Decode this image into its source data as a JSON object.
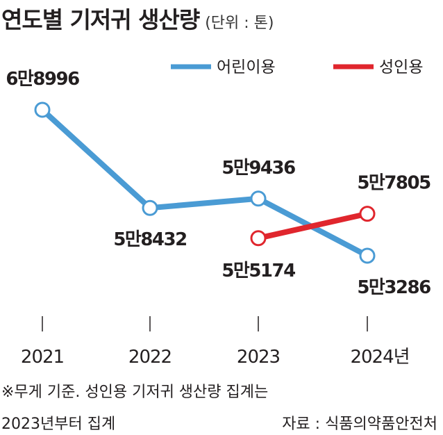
{
  "title": "연도별 기저귀 생산량",
  "unit_note": "(단위 : 톤)",
  "chart_data": {
    "type": "line",
    "categories": [
      "2021",
      "2022",
      "2023",
      "2024년"
    ],
    "series": [
      {
        "name": "어린이용",
        "color": "#4a9bd4",
        "values": [
          68996,
          58432,
          59436,
          53286
        ],
        "labels": [
          "6만8996",
          "5만8432",
          "5만9436",
          "5만3286"
        ]
      },
      {
        "name": "성인용",
        "color": "#e0262d",
        "values": [
          null,
          null,
          55174,
          57805
        ],
        "labels": [
          null,
          null,
          "5만5174",
          "5만7805"
        ]
      }
    ],
    "xlabel": "",
    "ylabel": "",
    "grid": false,
    "legend": "top-right"
  },
  "footnote_line1": "※무게 기준. 성인용 기저귀 생산량 집계는",
  "footnote_line2": "2023년부터 집계",
  "source": "자료 : 식품의약품안전처"
}
